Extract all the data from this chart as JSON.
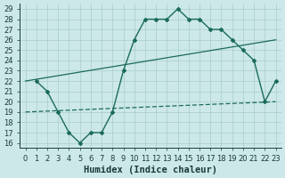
{
  "xlabel": "Humidex (Indice chaleur)",
  "bg_color": "#cce8e8",
  "grid_color": "#aacccc",
  "line_color": "#1a6b5a",
  "xlim": [
    -0.5,
    23.5
  ],
  "ylim": [
    15.5,
    29.5
  ],
  "yticks": [
    16,
    17,
    18,
    19,
    20,
    21,
    22,
    23,
    24,
    25,
    26,
    27,
    28,
    29
  ],
  "xticks": [
    0,
    1,
    2,
    3,
    4,
    5,
    6,
    7,
    8,
    9,
    10,
    11,
    12,
    13,
    14,
    15,
    16,
    17,
    18,
    19,
    20,
    21,
    22,
    23
  ],
  "line1_x": [
    1,
    2,
    3,
    4,
    5,
    6,
    7,
    8,
    9,
    10,
    11,
    12,
    13,
    14,
    15,
    16,
    17,
    18,
    19,
    20,
    21,
    22,
    23
  ],
  "line1_y": [
    22,
    21,
    19,
    17,
    16,
    17,
    17,
    19,
    23,
    26,
    28,
    28,
    28,
    29,
    28,
    28,
    27,
    27,
    26,
    25,
    24,
    20,
    22
  ],
  "line2_x": [
    0,
    23
  ],
  "line2_y": [
    22,
    26
  ],
  "line3_x": [
    0,
    23
  ],
  "line3_y": [
    19,
    20
  ],
  "xlabel_fontsize": 7.5,
  "tick_fontsize": 6
}
